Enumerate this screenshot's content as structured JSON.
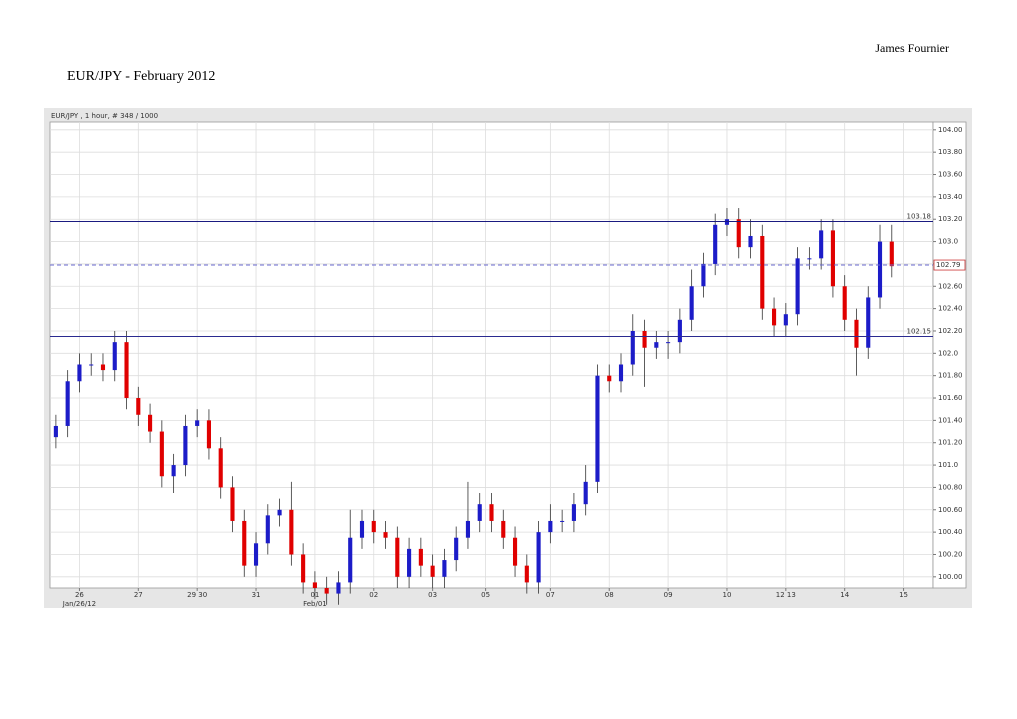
{
  "header": {
    "author": "James Fournier",
    "title": "EUR/JPY - February 2012"
  },
  "chart_data": {
    "type": "candlestick",
    "caption": "EUR/JPY , 1 hour, # 348 / 1000",
    "up_color": "#1c1cc8",
    "down_color": "#e00000",
    "grid": true,
    "xlim": [
      -0.5,
      74.5
    ],
    "ylim": [
      99.9,
      104.07
    ],
    "xticks": [
      {
        "value": 2,
        "label": "26"
      },
      {
        "value": 7,
        "label": "27"
      },
      {
        "value": 12,
        "label": "29 30"
      },
      {
        "value": 17,
        "label": "31"
      },
      {
        "value": 22,
        "label": "01"
      },
      {
        "value": 27,
        "label": "02"
      },
      {
        "value": 32,
        "label": "03"
      },
      {
        "value": 36.5,
        "label": "05"
      },
      {
        "value": 42,
        "label": "07"
      },
      {
        "value": 47,
        "label": "08"
      },
      {
        "value": 52,
        "label": "09"
      },
      {
        "value": 57,
        "label": "10"
      },
      {
        "value": 62,
        "label": "12 13"
      },
      {
        "value": 67,
        "label": "14"
      },
      {
        "value": 72,
        "label": "15"
      }
    ],
    "xticks2": [
      {
        "value": 2,
        "label": "Jan/26/12"
      },
      {
        "value": 22,
        "label": "Feb/01"
      }
    ],
    "yticks": [
      {
        "value": 100,
        "label": "100.00"
      },
      {
        "value": 100.2,
        "label": "100.20"
      },
      {
        "value": 100.4,
        "label": "100.40"
      },
      {
        "value": 100.6,
        "label": "100.60"
      },
      {
        "value": 100.8,
        "label": "100.80"
      },
      {
        "value": 101,
        "label": "101.0"
      },
      {
        "value": 101.2,
        "label": "101.20"
      },
      {
        "value": 101.4,
        "label": "101.40"
      },
      {
        "value": 101.6,
        "label": "101.60"
      },
      {
        "value": 101.8,
        "label": "101.80"
      },
      {
        "value": 102,
        "label": "102.0"
      },
      {
        "value": 102.2,
        "label": "102.20"
      },
      {
        "value": 102.4,
        "label": "102.40"
      },
      {
        "value": 102.6,
        "label": "102.60"
      },
      {
        "value": 102.8,
        "label": "102.80"
      },
      {
        "value": 103,
        "label": "103.0"
      },
      {
        "value": 103.2,
        "label": "103.20"
      },
      {
        "value": 103.4,
        "label": "103.40"
      },
      {
        "value": 103.6,
        "label": "103.60"
      },
      {
        "value": 103.8,
        "label": "103.80"
      },
      {
        "value": 104,
        "label": "104.00"
      }
    ],
    "hlines": [
      {
        "value": 103.18,
        "style": "solid",
        "color": "#1a1a80"
      },
      {
        "value": 102.15,
        "style": "solid",
        "color": "#2a2a90"
      },
      {
        "value": 102.79,
        "style": "dashed",
        "color": "#6a6ad0"
      }
    ],
    "open": [
      101.25,
      101.35,
      101.75,
      101.9,
      101.9,
      101.85,
      102.1,
      101.6,
      101.45,
      101.3,
      100.9,
      101.0,
      101.35,
      101.4,
      101.15,
      100.8,
      100.5,
      100.1,
      100.3,
      100.55,
      100.6,
      100.2,
      99.95,
      99.9,
      99.85,
      99.95,
      100.35,
      100.5,
      100.4,
      100.35,
      100.0,
      100.25,
      100.1,
      100.0,
      100.15,
      100.35,
      100.5,
      100.65,
      100.5,
      100.35,
      100.1,
      99.95,
      100.4,
      100.5,
      100.5,
      100.65,
      100.85,
      101.8,
      101.75,
      101.9,
      102.2,
      102.05,
      102.1,
      102.1,
      102.3,
      102.6,
      102.8,
      103.15,
      103.2,
      102.95,
      103.05,
      102.4,
      102.25,
      102.35,
      102.85,
      102.85,
      103.1,
      102.6,
      102.3,
      102.05,
      102.5,
      103.0
    ],
    "high": [
      101.45,
      101.85,
      102.0,
      102.0,
      102.0,
      102.2,
      102.2,
      101.7,
      101.55,
      101.4,
      101.1,
      101.45,
      101.5,
      101.5,
      101.25,
      100.9,
      100.6,
      100.4,
      100.65,
      100.7,
      100.85,
      100.3,
      100.05,
      100.0,
      100.05,
      100.6,
      100.6,
      100.6,
      100.5,
      100.45,
      100.35,
      100.35,
      100.2,
      100.25,
      100.45,
      100.85,
      100.75,
      100.75,
      100.6,
      100.45,
      100.2,
      100.5,
      100.65,
      100.6,
      100.75,
      101.0,
      101.9,
      101.9,
      102.0,
      102.35,
      102.3,
      102.2,
      102.2,
      102.4,
      102.75,
      102.9,
      103.25,
      103.3,
      103.3,
      103.2,
      103.15,
      102.5,
      102.45,
      102.95,
      102.95,
      103.2,
      103.2,
      102.7,
      102.4,
      102.6,
      103.15,
      103.15
    ],
    "low": [
      101.15,
      101.25,
      101.65,
      101.8,
      101.75,
      101.75,
      101.5,
      101.35,
      101.2,
      100.8,
      100.75,
      100.9,
      101.25,
      101.05,
      100.7,
      100.4,
      100.0,
      100.0,
      100.2,
      100.45,
      100.1,
      99.85,
      99.8,
      99.75,
      99.75,
      99.85,
      100.25,
      100.3,
      100.25,
      99.9,
      99.9,
      100.0,
      99.9,
      99.9,
      100.05,
      100.25,
      100.4,
      100.4,
      100.25,
      100.0,
      99.85,
      99.85,
      100.3,
      100.4,
      100.4,
      100.55,
      100.75,
      101.65,
      101.65,
      101.8,
      101.7,
      101.95,
      101.95,
      102.0,
      102.2,
      102.5,
      102.7,
      103.05,
      102.85,
      102.85,
      102.3,
      102.15,
      102.15,
      102.25,
      102.75,
      102.75,
      102.5,
      102.2,
      101.8,
      101.95,
      102.4,
      102.68
    ],
    "close": [
      101.35,
      101.75,
      101.9,
      101.9,
      101.85,
      102.1,
      101.6,
      101.45,
      101.3,
      100.9,
      101.0,
      101.35,
      101.4,
      101.15,
      100.8,
      100.5,
      100.1,
      100.3,
      100.55,
      100.6,
      100.2,
      99.95,
      99.9,
      99.85,
      99.95,
      100.35,
      100.5,
      100.4,
      100.35,
      100.0,
      100.25,
      100.1,
      100.0,
      100.15,
      100.35,
      100.5,
      100.65,
      100.5,
      100.35,
      100.1,
      99.95,
      100.4,
      100.5,
      100.5,
      100.65,
      100.85,
      101.8,
      101.75,
      101.9,
      102.2,
      102.05,
      102.1,
      102.1,
      102.3,
      102.6,
      102.8,
      103.15,
      103.2,
      102.95,
      103.05,
      102.4,
      102.25,
      102.35,
      102.85,
      102.85,
      103.1,
      102.6,
      102.3,
      102.05,
      102.5,
      103.0,
      102.78
    ]
  }
}
